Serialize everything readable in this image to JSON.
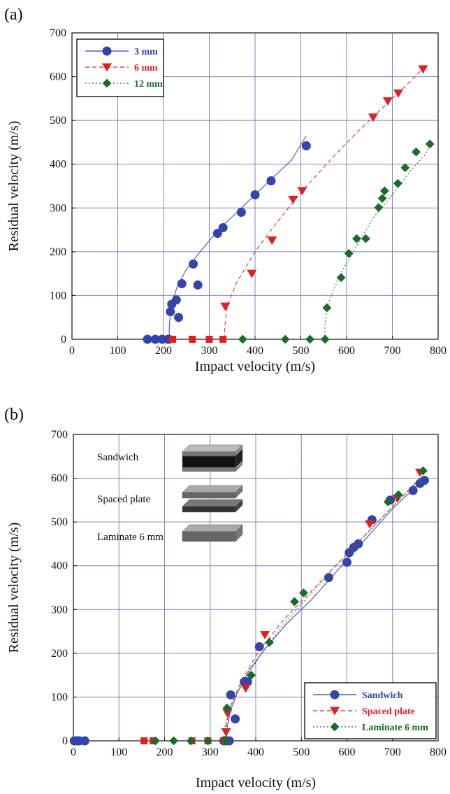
{
  "chart_data": [
    {
      "panel": "(a)",
      "type": "scatter",
      "xlabel": "Impact velocity (m/s)",
      "ylabel": "Residual velocity (m/s)",
      "xlim": [
        0,
        800
      ],
      "ylim": [
        0,
        700
      ],
      "xticks": [
        "0",
        "100",
        "200",
        "300",
        "400",
        "500",
        "600",
        "700",
        "800"
      ],
      "yticks": [
        "0",
        "100",
        "200",
        "300",
        "400",
        "500",
        "600",
        "700"
      ],
      "grid": true,
      "legend_position": "top-left",
      "series": [
        {
          "name": "3 mm",
          "color": "#3344aa",
          "marker": "circle",
          "line_style": "solid",
          "points": [
            [
              165,
              0
            ],
            [
              182,
              0
            ],
            [
              197,
              0
            ],
            [
              210,
              0
            ],
            [
              212,
              0
            ],
            [
              215,
              63
            ],
            [
              218,
              80
            ],
            [
              228,
              90
            ],
            [
              233,
              50
            ],
            [
              240,
              127
            ],
            [
              265,
              172
            ],
            [
              275,
              124
            ],
            [
              318,
              242
            ],
            [
              330,
              255
            ],
            [
              370,
              290
            ],
            [
              400,
              330
            ],
            [
              435,
              362
            ],
            [
              512,
              442
            ]
          ],
          "fit": [
            [
              212,
              0
            ],
            [
              213,
              35
            ],
            [
              216,
              68
            ],
            [
              222,
              95
            ],
            [
              230,
              120
            ],
            [
              250,
              160
            ],
            [
              280,
              200
            ],
            [
              320,
              250
            ],
            [
              370,
              300
            ],
            [
              430,
              360
            ],
            [
              480,
              410
            ],
            [
              512,
              465
            ]
          ]
        },
        {
          "name": "6 mm",
          "color": "#e02020",
          "marker": "triangle-down",
          "line_style": "dashed",
          "points": [
            [
              220,
              0
            ],
            [
              263,
              0
            ],
            [
              300,
              0
            ],
            [
              330,
              0
            ],
            [
              335,
              75
            ],
            [
              393,
              150
            ],
            [
              437,
              226
            ],
            [
              483,
              319
            ],
            [
              503,
              339
            ],
            [
              658,
              507
            ],
            [
              690,
              544
            ],
            [
              713,
              562
            ],
            [
              767,
              617
            ]
          ],
          "fit": [
            [
              333,
              0
            ],
            [
              334,
              30
            ],
            [
              340,
              80
            ],
            [
              360,
              130
            ],
            [
              400,
              200
            ],
            [
              450,
              270
            ],
            [
              500,
              335
            ],
            [
              560,
              405
            ],
            [
              620,
              470
            ],
            [
              680,
              530
            ],
            [
              740,
              590
            ],
            [
              770,
              622
            ]
          ]
        },
        {
          "name": "12 mm",
          "color": "#1a6b2a",
          "marker": "diamond",
          "line_style": "dotted",
          "points": [
            [
              373,
              0
            ],
            [
              466,
              0
            ],
            [
              520,
              0
            ],
            [
              553,
              0
            ],
            [
              557,
              72
            ],
            [
              588,
              141
            ],
            [
              605,
              196
            ],
            [
              622,
              230
            ],
            [
              642,
              230
            ],
            [
              670,
              301
            ],
            [
              678,
              322
            ],
            [
              683,
              339
            ],
            [
              712,
              356
            ],
            [
              728,
              392
            ],
            [
              752,
              428
            ],
            [
              782,
              446
            ]
          ],
          "fit": [
            [
              552,
              0
            ],
            [
              553,
              35
            ],
            [
              558,
              75
            ],
            [
              570,
              110
            ],
            [
              590,
              155
            ],
            [
              620,
              210
            ],
            [
              660,
              280
            ],
            [
              700,
              330
            ],
            [
              740,
              385
            ],
            [
              770,
              420
            ],
            [
              785,
              445
            ]
          ]
        }
      ]
    },
    {
      "panel": "(b)",
      "type": "scatter",
      "xlabel": "Impact velocity (m/s)",
      "ylabel": "Residual velocity (m/s)",
      "xlim": [
        0,
        800
      ],
      "ylim": [
        0,
        700
      ],
      "xticks": [
        "0",
        "100",
        "200",
        "300",
        "400",
        "500",
        "600",
        "700",
        "800"
      ],
      "yticks": [
        "0",
        "100",
        "200",
        "300",
        "400",
        "500",
        "600",
        "700"
      ],
      "grid": true,
      "legend_position": "bottom-right",
      "inset": {
        "labels": [
          "Sandwich",
          "Spaced plate",
          "Laminate 6 mm"
        ]
      },
      "series": [
        {
          "name": "Sandwich",
          "color": "#3344aa",
          "marker": "circle",
          "line_style": "solid",
          "points": [
            [
              2,
              0
            ],
            [
              8,
              0
            ],
            [
              13,
              0
            ],
            [
              25,
              0
            ],
            [
              330,
              0
            ],
            [
              335,
              0
            ],
            [
              342,
              0
            ],
            [
              345,
              105
            ],
            [
              355,
              50
            ],
            [
              375,
              135
            ],
            [
              382,
              135
            ],
            [
              408,
              215
            ],
            [
              560,
              373
            ],
            [
              600,
              408
            ],
            [
              605,
              430
            ],
            [
              615,
              442
            ],
            [
              625,
              450
            ],
            [
              655,
              505
            ],
            [
              695,
              550
            ],
            [
              745,
              572
            ],
            [
              760,
              588
            ],
            [
              770,
              595
            ]
          ],
          "fit": [
            [
              336,
              0
            ],
            [
              337,
              30
            ],
            [
              345,
              70
            ],
            [
              360,
              110
            ],
            [
              385,
              160
            ],
            [
              420,
              210
            ],
            [
              470,
              270
            ],
            [
              520,
              320
            ],
            [
              580,
              390
            ],
            [
              640,
              460
            ],
            [
              700,
              530
            ],
            [
              760,
              590
            ]
          ]
        },
        {
          "name": "Spaced plate",
          "color": "#e02020",
          "marker": "triangle-down",
          "line_style": "dashed",
          "points": [
            [
              155,
              0
            ],
            [
              175,
              0
            ],
            [
              260,
              0
            ],
            [
              295,
              0
            ],
            [
              330,
              0
            ],
            [
              335,
              20
            ],
            [
              338,
              63
            ],
            [
              378,
              120
            ],
            [
              420,
              242
            ],
            [
              650,
              495
            ],
            [
              710,
              554
            ],
            [
              760,
              613
            ]
          ],
          "fit": [
            [
              333,
              0
            ],
            [
              334,
              30
            ],
            [
              345,
              80
            ],
            [
              370,
              140
            ],
            [
              410,
              210
            ],
            [
              460,
              275
            ],
            [
              520,
              340
            ],
            [
              580,
              405
            ],
            [
              640,
              470
            ],
            [
              700,
              535
            ],
            [
              760,
              598
            ]
          ]
        },
        {
          "name": "Laminate 6 mm",
          "color": "#1a6b2a",
          "marker": "diamond",
          "line_style": "dotted",
          "points": [
            [
              180,
              0
            ],
            [
              220,
              0
            ],
            [
              258,
              0
            ],
            [
              295,
              0
            ],
            [
              333,
              0
            ],
            [
              337,
              75
            ],
            [
              390,
              150
            ],
            [
              430,
              225
            ],
            [
              485,
              318
            ],
            [
              505,
              338
            ],
            [
              690,
              546
            ],
            [
              713,
              562
            ],
            [
              767,
              617
            ]
          ],
          "fit": [
            [
              332,
              0
            ],
            [
              333,
              35
            ],
            [
              345,
              80
            ],
            [
              370,
              130
            ],
            [
              410,
              195
            ],
            [
              460,
              265
            ],
            [
              520,
              335
            ],
            [
              580,
              405
            ],
            [
              640,
              470
            ],
            [
              700,
              535
            ],
            [
              765,
              605
            ]
          ]
        }
      ]
    }
  ]
}
